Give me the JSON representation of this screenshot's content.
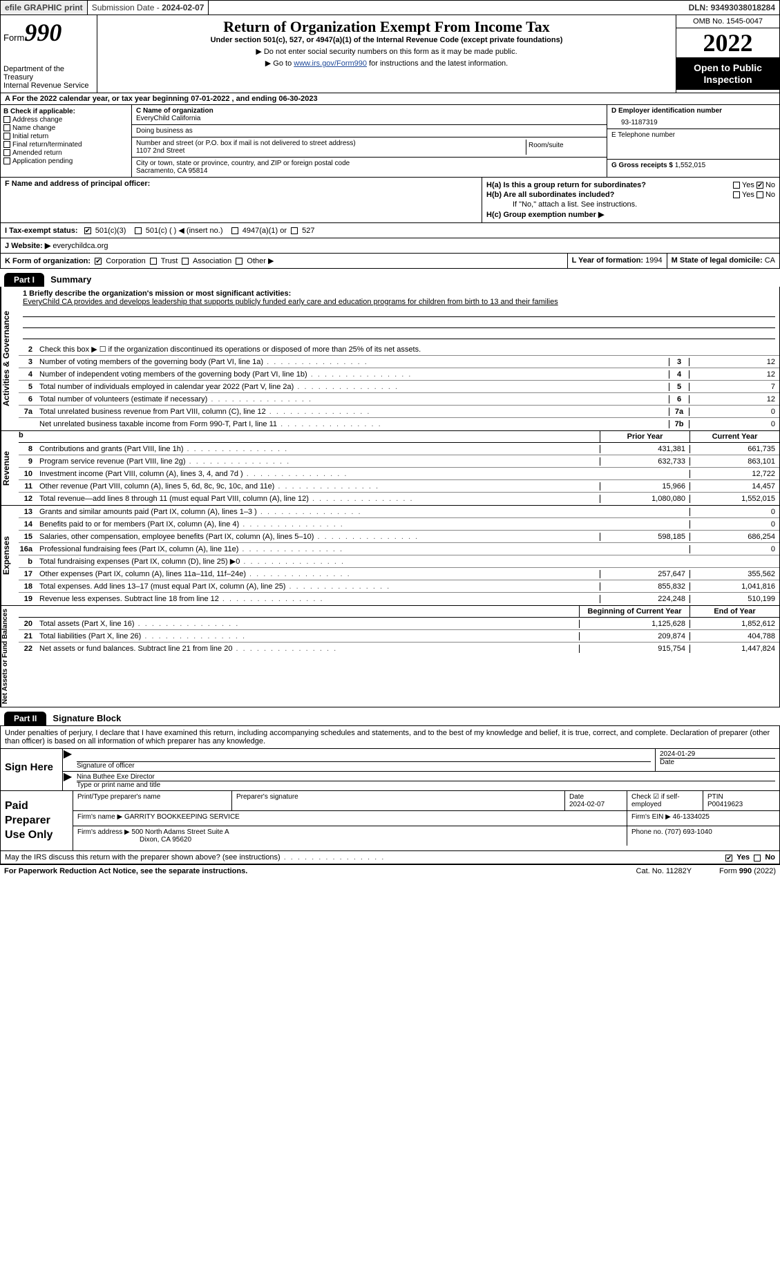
{
  "topbar": {
    "efile": "efile GRAPHIC print",
    "sub_label": "Submission Date - ",
    "sub_date": "2024-02-07",
    "dln_label": "DLN: ",
    "dln": "93493038018284"
  },
  "header": {
    "form_word": "Form",
    "form_num": "990",
    "dept1": "Department of the Treasury",
    "dept2": "Internal Revenue Service",
    "title": "Return of Organization Exempt From Income Tax",
    "subtitle": "Under section 501(c), 527, or 4947(a)(1) of the Internal Revenue Code (except private foundations)",
    "note1": "▶ Do not enter social security numbers on this form as it may be made public.",
    "note2_pre": "▶ Go to ",
    "note2_link": "www.irs.gov/Form990",
    "note2_post": " for instructions and the latest information.",
    "omb": "OMB No. 1545-0047",
    "year": "2022",
    "open": "Open to Public Inspection"
  },
  "periodA": "For the 2022 calendar year, or tax year beginning 07-01-2022   , and ending 06-30-2023",
  "boxB": {
    "title": "B Check if applicable:",
    "opts": [
      "Address change",
      "Name change",
      "Initial return",
      "Final return/terminated",
      "Amended return",
      "Application pending"
    ]
  },
  "boxC": {
    "name_lbl": "C Name of organization",
    "name": "EveryChild California",
    "dba_lbl": "Doing business as",
    "addr_lbl": "Number and street (or P.O. box if mail is not delivered to street address)",
    "room_lbl": "Room/suite",
    "addr": "1107 2nd Street",
    "city_lbl": "City or town, state or province, country, and ZIP or foreign postal code",
    "city": "Sacramento, CA  95814"
  },
  "boxD": {
    "ein_lbl": "D Employer identification number",
    "ein": "93-1187319",
    "tel_lbl": "E Telephone number",
    "gross_lbl": "G Gross receipts $ ",
    "gross": "1,552,015"
  },
  "boxF": {
    "lbl": "F Name and address of principal officer:"
  },
  "boxH": {
    "a": "H(a)  Is this a group return for subordinates?",
    "b": "H(b)  Are all subordinates included?",
    "b_note": "If \"No,\" attach a list. See instructions.",
    "c": "H(c)  Group exemption number ▶",
    "yes": "Yes",
    "no": "No"
  },
  "boxI": {
    "lbl": "I   Tax-exempt status:",
    "o1": "501(c)(3)",
    "o2": "501(c) (  ) ◀ (insert no.)",
    "o3": "4947(a)(1) or",
    "o4": "527"
  },
  "boxJ": {
    "lbl": "J   Website: ▶",
    "val": " everychildca.org"
  },
  "boxK": {
    "lbl": "K Form of organization:",
    "o1": "Corporation",
    "o2": "Trust",
    "o3": "Association",
    "o4": "Other ▶"
  },
  "boxL": {
    "lbl": "L Year of formation: ",
    "val": "1994"
  },
  "boxM": {
    "lbl": "M State of legal domicile: ",
    "val": "CA"
  },
  "part1": {
    "part": "Part I",
    "title": "Summary",
    "mission_lbl": "1  Briefly describe the organization's mission or most significant activities:",
    "mission": "EveryChild CA provides and develops leadership that supports publicly funded early care and education programs for children from birth to 13 and their families",
    "line2": "Check this box ▶ ☐  if the organization discontinued its operations or disposed of more than 25% of its net assets.",
    "sidebar_ag": "Activities & Governance",
    "sidebar_rev": "Revenue",
    "sidebar_exp": "Expenses",
    "sidebar_net": "Net Assets or Fund Balances",
    "prior": "Prior Year",
    "current": "Current Year",
    "begin": "Beginning of Current Year",
    "end": "End of Year",
    "rows_ag": [
      {
        "n": "3",
        "lbl": "Number of voting members of the governing body (Part VI, line 1a)",
        "box": "3",
        "v": "12"
      },
      {
        "n": "4",
        "lbl": "Number of independent voting members of the governing body (Part VI, line 1b)",
        "box": "4",
        "v": "12"
      },
      {
        "n": "5",
        "lbl": "Total number of individuals employed in calendar year 2022 (Part V, line 2a)",
        "box": "5",
        "v": "7"
      },
      {
        "n": "6",
        "lbl": "Total number of volunteers (estimate if necessary)",
        "box": "6",
        "v": "12"
      },
      {
        "n": "7a",
        "lbl": "Total unrelated business revenue from Part VIII, column (C), line 12",
        "box": "7a",
        "v": "0"
      },
      {
        "n": "",
        "lbl": "Net unrelated business taxable income from Form 990-T, Part I, line 11",
        "box": "7b",
        "v": "0"
      }
    ],
    "rows_rev": [
      {
        "n": "8",
        "lbl": "Contributions and grants (Part VIII, line 1h)",
        "p": "431,381",
        "c": "661,735"
      },
      {
        "n": "9",
        "lbl": "Program service revenue (Part VIII, line 2g)",
        "p": "632,733",
        "c": "863,101"
      },
      {
        "n": "10",
        "lbl": "Investment income (Part VIII, column (A), lines 3, 4, and 7d )",
        "p": "",
        "c": "12,722"
      },
      {
        "n": "11",
        "lbl": "Other revenue (Part VIII, column (A), lines 5, 6d, 8c, 9c, 10c, and 11e)",
        "p": "15,966",
        "c": "14,457"
      },
      {
        "n": "12",
        "lbl": "Total revenue—add lines 8 through 11 (must equal Part VIII, column (A), line 12)",
        "p": "1,080,080",
        "c": "1,552,015"
      }
    ],
    "rows_exp": [
      {
        "n": "13",
        "lbl": "Grants and similar amounts paid (Part IX, column (A), lines 1–3 )",
        "p": "",
        "c": "0"
      },
      {
        "n": "14",
        "lbl": "Benefits paid to or for members (Part IX, column (A), line 4)",
        "p": "",
        "c": "0"
      },
      {
        "n": "15",
        "lbl": "Salaries, other compensation, employee benefits (Part IX, column (A), lines 5–10)",
        "p": "598,185",
        "c": "686,254"
      },
      {
        "n": "16a",
        "lbl": "Professional fundraising fees (Part IX, column (A), line 11e)",
        "p": "",
        "c": "0"
      },
      {
        "n": "b",
        "lbl": "Total fundraising expenses (Part IX, column (D), line 25) ▶0",
        "p": "GREY",
        "c": "GREY"
      },
      {
        "n": "17",
        "lbl": "Other expenses (Part IX, column (A), lines 11a–11d, 11f–24e)",
        "p": "257,647",
        "c": "355,562"
      },
      {
        "n": "18",
        "lbl": "Total expenses. Add lines 13–17 (must equal Part IX, column (A), line 25)",
        "p": "855,832",
        "c": "1,041,816"
      },
      {
        "n": "19",
        "lbl": "Revenue less expenses. Subtract line 18 from line 12",
        "p": "224,248",
        "c": "510,199"
      }
    ],
    "rows_net": [
      {
        "n": "20",
        "lbl": "Total assets (Part X, line 16)",
        "p": "1,125,628",
        "c": "1,852,612"
      },
      {
        "n": "21",
        "lbl": "Total liabilities (Part X, line 26)",
        "p": "209,874",
        "c": "404,788"
      },
      {
        "n": "22",
        "lbl": "Net assets or fund balances. Subtract line 21 from line 20",
        "p": "915,754",
        "c": "1,447,824"
      }
    ]
  },
  "part2": {
    "part": "Part II",
    "title": "Signature Block",
    "intro": "Under penalties of perjury, I declare that I have examined this return, including accompanying schedules and statements, and to the best of my knowledge and belief, it is true, correct, and complete. Declaration of preparer (other than officer) is based on all information of which preparer has any knowledge.",
    "sign_here": "Sign Here",
    "sig_officer_lbl": "Signature of officer",
    "sig_date": "2024-01-29",
    "date_lbl": "Date",
    "officer_name": "Nina Buthee  Exe Director",
    "officer_type_lbl": "Type or print name and title",
    "paid": "Paid Preparer Use Only",
    "prep_name_lbl": "Print/Type preparer's name",
    "prep_sig_lbl": "Preparer's signature",
    "prep_date_lbl": "Date",
    "prep_date": "2024-02-07",
    "self_emp": "Check ☑ if self-employed",
    "ptin_lbl": "PTIN",
    "ptin": "P00419623",
    "firm_name_lbl": "Firm's name    ▶ ",
    "firm_name": "GARRITY BOOKKEEPING SERVICE",
    "firm_ein_lbl": "Firm's EIN ▶ ",
    "firm_ein": "46-1334025",
    "firm_addr_lbl": "Firm's address ▶ ",
    "firm_addr1": "500 North Adams Street Suite A",
    "firm_addr2": "Dixon, CA  95620",
    "phone_lbl": "Phone no. ",
    "phone": "(707) 693-1040",
    "discuss": "May the IRS discuss this return with the preparer shown above? (see instructions)",
    "yes": "Yes",
    "no": "No"
  },
  "footer": {
    "pra": "For Paperwork Reduction Act Notice, see the separate instructions.",
    "cat": "Cat. No. 11282Y",
    "form": "Form 990 (2022)"
  }
}
